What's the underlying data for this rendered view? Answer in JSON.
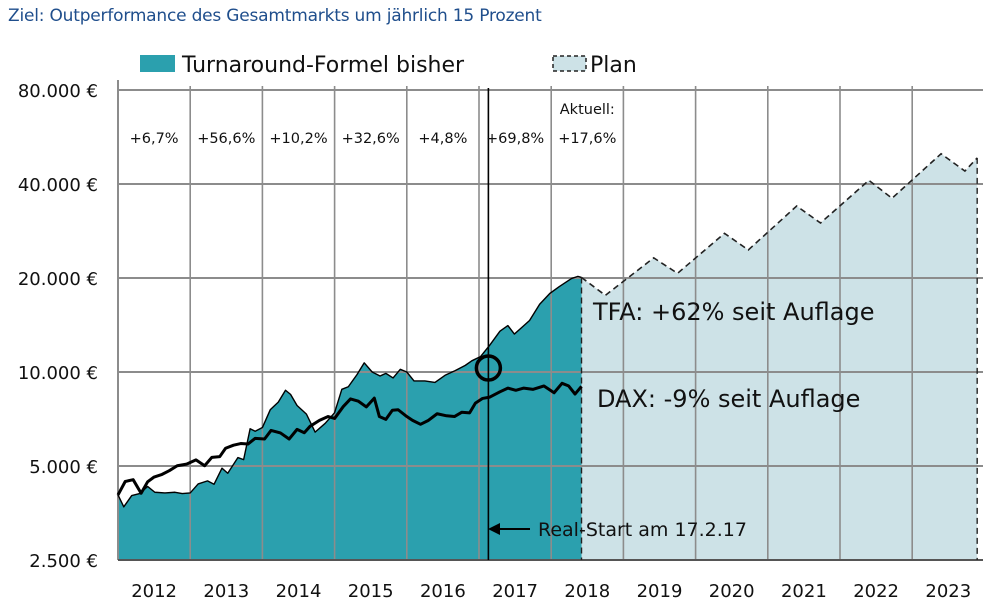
{
  "title": "Ziel: Outperformance des Gesamtmarkts um jährlich 15 Prozent",
  "colors": {
    "title": "#1f4e8c",
    "tfa_fill": "#2ba0ae",
    "plan_fill": "#cde2e7",
    "grid": "#8c8c8c",
    "line": "#000000"
  },
  "chart_data": {
    "type": "area",
    "title": "Ziel: Outperformance des Gesamtmarkts um jährlich 15 Prozent",
    "xlabel": "",
    "ylabel": "",
    "yscale": "log2",
    "ylim": [
      2500,
      80000
    ],
    "xlim": [
      2012,
      2024
    ],
    "grid": true,
    "legend_position": "top",
    "y_ticks": [
      {
        "value": 80000,
        "label": "80.000 €"
      },
      {
        "value": 40000,
        "label": "40.000 €"
      },
      {
        "value": 20000,
        "label": "20.000 €"
      },
      {
        "value": 10000,
        "label": "10.000 €"
      },
      {
        "value": 5000,
        "label": "5.000 €"
      },
      {
        "value": 2500,
        "label": "2.500 €"
      }
    ],
    "x_ticks": [
      "2012",
      "2013",
      "2014",
      "2015",
      "2016",
      "2017",
      "2018",
      "2019",
      "2020",
      "2021",
      "2022",
      "2023"
    ],
    "legend": [
      {
        "name": "Turnaround-Formel bisher",
        "style": "solid-fill"
      },
      {
        "name": "Plan",
        "style": "dashed-fill"
      }
    ],
    "annual_returns": [
      {
        "year": "2012",
        "label": "+6,7%"
      },
      {
        "year": "2013",
        "label": "+56,6%"
      },
      {
        "year": "2014",
        "label": "+10,2%"
      },
      {
        "year": "2015",
        "label": "+32,6%"
      },
      {
        "year": "2016",
        "label": "+4,8%"
      },
      {
        "year": "2017",
        "label": "+69,8%"
      },
      {
        "year": "2018",
        "label": "+17,6%",
        "prefix": "Aktuell:"
      }
    ],
    "series": [
      {
        "name": "Turnaround-Formel bisher",
        "type": "area",
        "x": [
          2012.0,
          2012.08,
          2012.19,
          2012.3,
          2012.41,
          2012.51,
          2012.65,
          2012.79,
          2012.89,
          2013.0,
          2013.11,
          2013.24,
          2013.33,
          2013.44,
          2013.52,
          2013.66,
          2013.74,
          2013.83,
          2013.9,
          2014.0,
          2014.11,
          2014.22,
          2014.32,
          2014.39,
          2014.48,
          2014.61,
          2014.73,
          2014.87,
          2015.0,
          2015.1,
          2015.19,
          2015.31,
          2015.41,
          2015.52,
          2015.63,
          2015.71,
          2015.81,
          2015.91,
          2016.0,
          2016.1,
          2016.25,
          2016.39,
          2016.53,
          2016.67,
          2016.81,
          2016.9,
          2017.02,
          2017.15,
          2017.29,
          2017.4,
          2017.49,
          2017.59,
          2017.7,
          2017.84,
          2017.98,
          2018.11,
          2018.28,
          2018.37,
          2018.42
        ],
        "values": [
          4040,
          3700,
          4020,
          4080,
          4300,
          4120,
          4100,
          4120,
          4080,
          4100,
          4380,
          4480,
          4370,
          4920,
          4740,
          5320,
          5240,
          6580,
          6460,
          6640,
          7580,
          8010,
          8740,
          8480,
          7810,
          7330,
          6420,
          6850,
          7410,
          8800,
          8970,
          9810,
          10700,
          10000,
          9710,
          9900,
          9570,
          10200,
          10000,
          9360,
          9360,
          9260,
          9760,
          10100,
          10500,
          10860,
          11200,
          12200,
          13510,
          14080,
          13230,
          13870,
          14620,
          16480,
          17840,
          18760,
          19920,
          20240,
          20080
        ]
      },
      {
        "name": "DAX",
        "type": "line",
        "x": [
          2012.0,
          2012.1,
          2012.21,
          2012.32,
          2012.41,
          2012.5,
          2012.61,
          2012.71,
          2012.82,
          2012.95,
          2013.08,
          2013.2,
          2013.3,
          2013.41,
          2013.49,
          2013.6,
          2013.7,
          2013.8,
          2013.9,
          2014.03,
          2014.12,
          2014.25,
          2014.37,
          2014.48,
          2014.58,
          2014.66,
          2014.79,
          2014.91,
          2015.0,
          2015.12,
          2015.22,
          2015.33,
          2015.44,
          2015.55,
          2015.62,
          2015.71,
          2015.8,
          2015.88,
          2016.0,
          2016.08,
          2016.19,
          2016.3,
          2016.42,
          2016.55,
          2016.66,
          2016.76,
          2016.87,
          2016.95,
          2017.05,
          2017.15,
          2017.29,
          2017.4,
          2017.51,
          2017.62,
          2017.75,
          2017.9,
          2018.04,
          2018.15,
          2018.24,
          2018.33,
          2018.42
        ],
        "values": [
          4040,
          4460,
          4520,
          4090,
          4450,
          4610,
          4700,
          4830,
          5010,
          5070,
          5230,
          5010,
          5330,
          5360,
          5700,
          5830,
          5900,
          5880,
          6130,
          6100,
          6500,
          6380,
          6100,
          6550,
          6390,
          6700,
          7000,
          7200,
          7100,
          7750,
          8200,
          8060,
          7730,
          8250,
          7200,
          7050,
          7540,
          7570,
          7200,
          7000,
          6800,
          7000,
          7350,
          7240,
          7200,
          7430,
          7400,
          7950,
          8230,
          8310,
          8640,
          8880,
          8740,
          8880,
          8800,
          9020,
          8580,
          9200,
          9030,
          8500,
          9000
        ]
      },
      {
        "name": "Plan",
        "type": "area-dashed",
        "x": [
          2018.42,
          2018.75,
          2019.42,
          2019.75,
          2020.4,
          2020.73,
          2021.4,
          2021.73,
          2022.4,
          2022.72,
          2023.4,
          2023.73,
          2023.9
        ],
        "values": [
          20080,
          17600,
          23200,
          20700,
          27800,
          24600,
          34000,
          30000,
          41100,
          36000,
          50000,
          44000,
          48500
        ]
      }
    ],
    "markers": [
      {
        "type": "circle",
        "x": 2017.13,
        "value": 10300,
        "label": "Real-Start"
      },
      {
        "type": "vline",
        "x": 2017.13
      }
    ],
    "annotations": [
      {
        "text": "TFA: +62% seit Auflage",
        "near_series": "Turnaround-Formel bisher"
      },
      {
        "text": "DAX: -9% seit Auflage",
        "near_series": "DAX"
      },
      {
        "text": "Real-Start am 17.2.17",
        "arrow": "left",
        "points_to_x": 2017.13
      }
    ]
  }
}
